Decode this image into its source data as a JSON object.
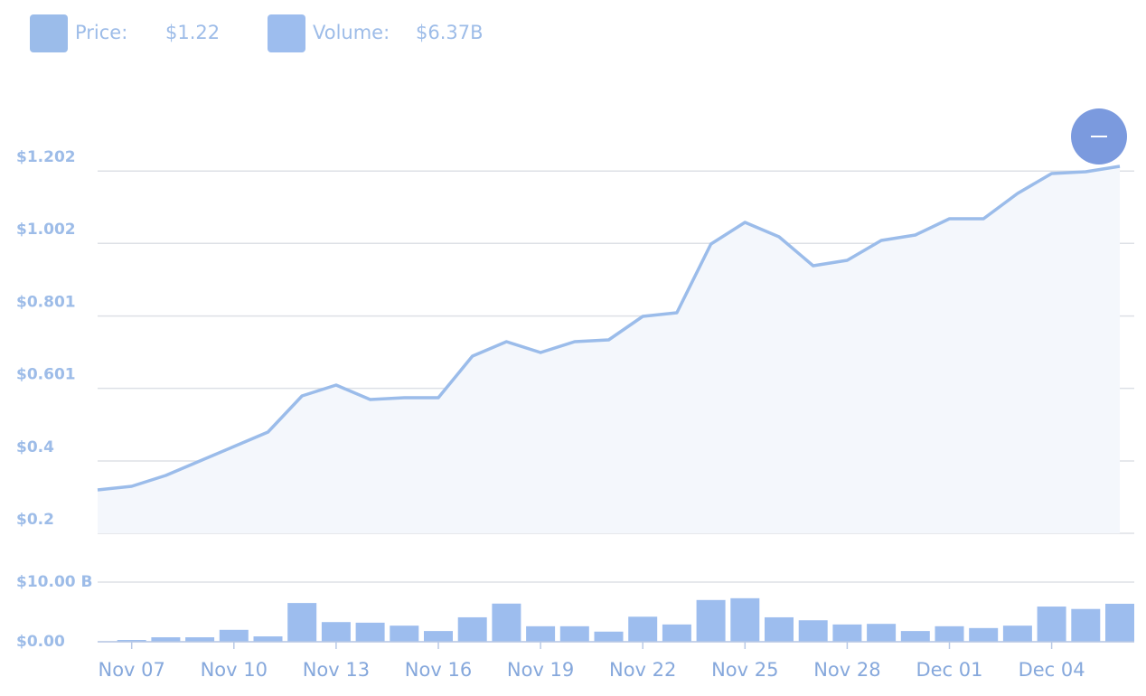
{
  "chart_data": [
    {
      "type": "area",
      "series": [
        {
          "name": "Price:",
          "color": "#9bbcea",
          "values": [
            0.32,
            0.33,
            0.36,
            0.4,
            0.44,
            0.48,
            0.58,
            0.61,
            0.57,
            0.575,
            0.575,
            0.69,
            0.73,
            0.7,
            0.73,
            0.735,
            0.8,
            0.81,
            1.0,
            1.06,
            1.02,
            0.94,
            0.955,
            1.01,
            1.025,
            1.07,
            1.07,
            1.14,
            1.195,
            1.2,
            1.215
          ]
        }
      ],
      "legend_value": "$1.22",
      "ylim": [
        0.2,
        1.375
      ],
      "yticks": [
        {
          "value": 0.2,
          "label": "$0.2"
        },
        {
          "value": 0.4,
          "label": "$0.4"
        },
        {
          "value": 0.601,
          "label": "$0.601"
        },
        {
          "value": 0.801,
          "label": "$0.801"
        },
        {
          "value": 1.002,
          "label": "$1.002"
        },
        {
          "value": 1.202,
          "label": "$1.202"
        }
      ],
      "grid": true
    },
    {
      "type": "bar",
      "categories": [
        null,
        "Nov 07",
        null,
        null,
        "Nov 10",
        null,
        null,
        "Nov 13",
        null,
        null,
        "Nov 16",
        null,
        null,
        "Nov 19",
        null,
        null,
        "Nov 22",
        null,
        null,
        "Nov 25",
        null,
        null,
        "Nov 28",
        null,
        null,
        "Dec 01",
        null,
        null,
        "Dec 04",
        null,
        null
      ],
      "series": [
        {
          "name": "Volume:",
          "color": "#9dbdee",
          "values": [
            null,
            0.3,
            0.75,
            0.75,
            2.0,
            0.9,
            6.5,
            3.3,
            3.2,
            2.7,
            1.8,
            4.1,
            6.4,
            2.6,
            2.6,
            1.7,
            4.2,
            2.9,
            7.0,
            7.3,
            4.1,
            3.6,
            2.9,
            3.0,
            1.8,
            2.6,
            2.3,
            2.7,
            5.9,
            5.5,
            6.37
          ]
        }
      ],
      "legend_value": "$6.37B",
      "ylim": [
        0,
        10
      ],
      "yticks": [
        {
          "value": 0,
          "label": "$0.00"
        },
        {
          "value": 10,
          "label": "$10.00 B"
        }
      ],
      "grid": true
    }
  ]
}
